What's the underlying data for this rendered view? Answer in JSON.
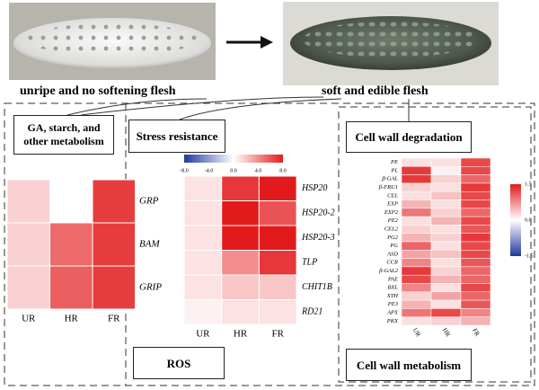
{
  "photos": {
    "left_caption": "unripe and no softening flesh",
    "right_caption": "soft and edible flesh"
  },
  "boxes": {
    "ga": "GA, starch, and other metabolism",
    "stress": "Stress resistance",
    "cellwall_degradation": "Cell wall degradation",
    "ros": "ROS",
    "cellwall_metabolism": "Cell wall metabolism"
  },
  "heatmaps": [
    {
      "columns": [
        "UR",
        "HR",
        "FR"
      ],
      "rows": [
        {
          "name": "GRP",
          "values": [
            0.2,
            0,
            0.85
          ]
        },
        {
          "name": "BAM",
          "values": [
            0.2,
            0.65,
            0.85
          ]
        },
        {
          "name": "GRIP",
          "values": [
            0.2,
            0.7,
            0.85
          ]
        }
      ]
    },
    {
      "columns": [
        "UR",
        "HR",
        "FR"
      ],
      "lim": [
        -8,
        8
      ],
      "ticks": [
        {
          "value": -8,
          "label": "-8.0"
        },
        {
          "value": -4,
          "label": "-4.0"
        },
        {
          "value": 0,
          "label": "0.0"
        },
        {
          "value": 4,
          "label": "4.0"
        },
        {
          "value": 8,
          "label": "8.0"
        }
      ],
      "rows": [
        {
          "name": "HSP20",
          "values": [
            1,
            7,
            8
          ]
        },
        {
          "name": "HSP20-2",
          "values": [
            1,
            8,
            6
          ]
        },
        {
          "name": "HSP20-3",
          "values": [
            1,
            8,
            8
          ]
        },
        {
          "name": "TLP",
          "values": [
            1,
            4,
            7
          ]
        },
        {
          "name": "CHIT1B",
          "values": [
            1,
            2,
            2
          ]
        },
        {
          "name": "RD21",
          "values": [
            0.5,
            1,
            1
          ]
        }
      ]
    },
    {
      "columns": [
        "UR",
        "HR",
        "FR"
      ],
      "lim": [
        -1.5,
        1.5
      ],
      "ticks": [
        1.5,
        {
          "value": 0,
          "label": "0.0"
        },
        -1.5
      ],
      "rows": [
        {
          "name": "PE",
          "values": [
            0.2,
            0.2,
            1.2
          ]
        },
        {
          "name": "PL",
          "values": [
            1.3,
            0.1,
            1.2
          ]
        },
        {
          "name": "β-GAL",
          "values": [
            1.3,
            0.3,
            1.0
          ]
        },
        {
          "name": "β-FRU1",
          "values": [
            0.3,
            0.2,
            1.3
          ]
        },
        {
          "name": "CEL",
          "values": [
            0.2,
            0.4,
            1.2
          ]
        },
        {
          "name": "EXP",
          "values": [
            0.5,
            0.2,
            1.2
          ]
        },
        {
          "name": "EXP2",
          "values": [
            0.9,
            0.3,
            1.0
          ]
        },
        {
          "name": "PE2",
          "values": [
            0.2,
            0.5,
            1.2
          ]
        },
        {
          "name": "CEL2",
          "values": [
            0.3,
            0.2,
            1.1
          ]
        },
        {
          "name": "PG2",
          "values": [
            0.5,
            0.3,
            1.3
          ]
        },
        {
          "name": "PG",
          "values": [
            1.0,
            0.2,
            1.2
          ]
        },
        {
          "name": "ASD",
          "values": [
            0.6,
            0.4,
            1.2
          ]
        },
        {
          "name": "CCR",
          "values": [
            0.8,
            0.2,
            1.1
          ]
        },
        {
          "name": "β-GAL2",
          "values": [
            1.3,
            0.3,
            1.0
          ]
        },
        {
          "name": "PAE",
          "values": [
            1.2,
            0.5,
            1.0
          ]
        },
        {
          "name": "BXL",
          "values": [
            0.8,
            0.2,
            1.2
          ]
        },
        {
          "name": "XTH",
          "values": [
            0.3,
            0.6,
            1.0
          ]
        },
        {
          "name": "PE3",
          "values": [
            0.5,
            0.2,
            1.1
          ]
        },
        {
          "name": "APX",
          "values": [
            0.9,
            1.2,
            0.8
          ]
        },
        {
          "name": "PKX",
          "values": [
            0.2,
            0.3,
            0.5
          ]
        }
      ]
    }
  ]
}
